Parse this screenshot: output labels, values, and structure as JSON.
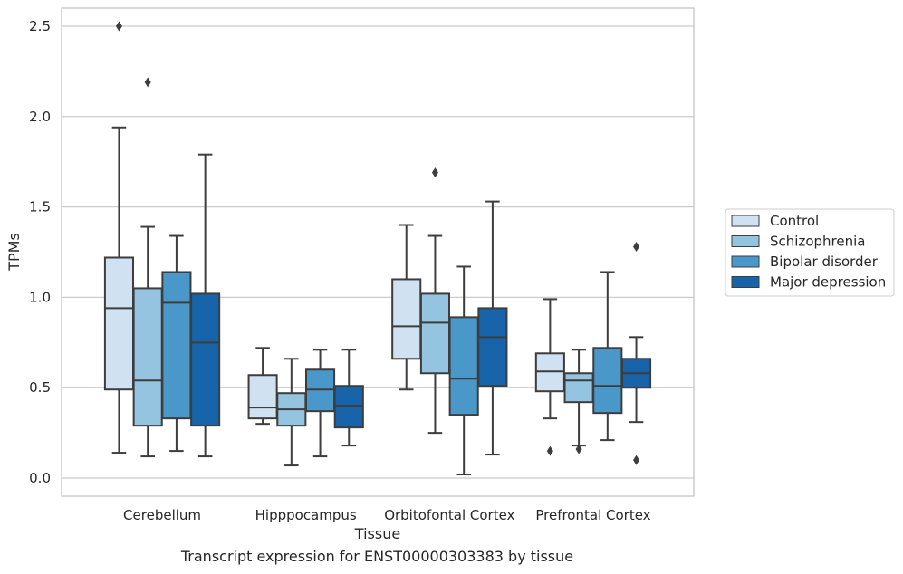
{
  "chart_data": {
    "type": "box",
    "xlabel": "Tissue",
    "ylabel": "TPMs",
    "ylim": [
      -0.1,
      2.6
    ],
    "yticks": [
      0.0,
      0.5,
      1.0,
      1.5,
      2.0,
      2.5
    ],
    "ytick_labels": [
      "0.0",
      "0.5",
      "1.0",
      "1.5",
      "2.0",
      "2.5"
    ],
    "categories": [
      "Cerebellum",
      "Hipppocampus",
      "Orbitofontal Cortex",
      "Prefrontal Cortex"
    ],
    "grid": "horizontal",
    "legend_position": "right",
    "series": [
      {
        "name": "Control",
        "color": "#d0e1f2",
        "boxes": [
          {
            "whislo": 0.14,
            "q1": 0.49,
            "med": 0.94,
            "q3": 1.22,
            "whishi": 1.94,
            "fliers": [
              2.5
            ]
          },
          {
            "whislo": 0.3,
            "q1": 0.33,
            "med": 0.39,
            "q3": 0.57,
            "whishi": 0.72,
            "fliers": []
          },
          {
            "whislo": 0.49,
            "q1": 0.66,
            "med": 0.84,
            "q3": 1.1,
            "whishi": 1.4,
            "fliers": []
          },
          {
            "whislo": 0.33,
            "q1": 0.48,
            "med": 0.59,
            "q3": 0.69,
            "whishi": 0.99,
            "fliers": [
              0.15
            ]
          }
        ]
      },
      {
        "name": "Schizophrenia",
        "color": "#94c4df",
        "boxes": [
          {
            "whislo": 0.12,
            "q1": 0.29,
            "med": 0.54,
            "q3": 1.05,
            "whishi": 1.39,
            "fliers": [
              2.19
            ]
          },
          {
            "whislo": 0.07,
            "q1": 0.29,
            "med": 0.38,
            "q3": 0.47,
            "whishi": 0.66,
            "fliers": []
          },
          {
            "whislo": 0.25,
            "q1": 0.58,
            "med": 0.86,
            "q3": 1.02,
            "whishi": 1.34,
            "fliers": [
              1.69
            ]
          },
          {
            "whislo": 0.18,
            "q1": 0.42,
            "med": 0.54,
            "q3": 0.58,
            "whishi": 0.71,
            "fliers": [
              0.16
            ]
          }
        ]
      },
      {
        "name": "Bipolar disorder",
        "color": "#4a98c9",
        "boxes": [
          {
            "whislo": 0.15,
            "q1": 0.33,
            "med": 0.97,
            "q3": 1.14,
            "whishi": 1.34,
            "fliers": []
          },
          {
            "whislo": 0.12,
            "q1": 0.37,
            "med": 0.49,
            "q3": 0.6,
            "whishi": 0.71,
            "fliers": []
          },
          {
            "whislo": 0.02,
            "q1": 0.35,
            "med": 0.55,
            "q3": 0.89,
            "whishi": 1.17,
            "fliers": []
          },
          {
            "whislo": 0.21,
            "q1": 0.36,
            "med": 0.51,
            "q3": 0.72,
            "whishi": 1.14,
            "fliers": []
          }
        ]
      },
      {
        "name": "Major depression",
        "color": "#1764ab",
        "boxes": [
          {
            "whislo": 0.12,
            "q1": 0.29,
            "med": 0.75,
            "q3": 1.02,
            "whishi": 1.79,
            "fliers": []
          },
          {
            "whislo": 0.18,
            "q1": 0.28,
            "med": 0.4,
            "q3": 0.51,
            "whishi": 0.71,
            "fliers": []
          },
          {
            "whislo": 0.13,
            "q1": 0.51,
            "med": 0.78,
            "q3": 0.94,
            "whishi": 1.53,
            "fliers": []
          },
          {
            "whislo": 0.31,
            "q1": 0.5,
            "med": 0.58,
            "q3": 0.66,
            "whishi": 0.78,
            "fliers": [
              1.28,
              0.1
            ]
          }
        ]
      }
    ],
    "caption": "Transcript expression for ENST00000303383 by tissue"
  }
}
